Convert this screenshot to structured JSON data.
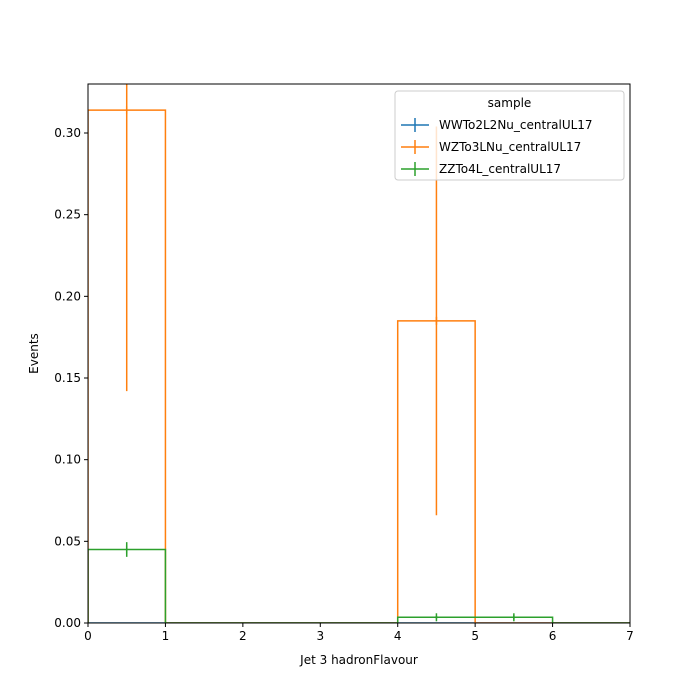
{
  "chart_data": {
    "type": "step-histogram",
    "xlabel": "Jet 3 hadronFlavour",
    "ylabel": "Events",
    "xlim": [
      0,
      7
    ],
    "ylim": [
      0,
      0.33
    ],
    "x_ticks": [
      "0",
      "1",
      "2",
      "3",
      "4",
      "5",
      "6",
      "7"
    ],
    "y_ticks": [
      "0.00",
      "0.05",
      "0.10",
      "0.15",
      "0.20",
      "0.25",
      "0.30"
    ],
    "legend": {
      "title": "sample",
      "placement": "upper-right"
    },
    "grid": false,
    "bin_edges": [
      0,
      1,
      2,
      3,
      4,
      5,
      6,
      7
    ],
    "series": [
      {
        "name": "WWTo2L2Nu_centralUL17",
        "color": "#1f77b4",
        "values": [
          0,
          0,
          0,
          0,
          0,
          0,
          0
        ],
        "errors": [
          0,
          0,
          0,
          0,
          0,
          0,
          0
        ]
      },
      {
        "name": "WZTo3LNu_centralUL17",
        "color": "#ff7f0e",
        "values": [
          0.314,
          0,
          0,
          0,
          0.185,
          0,
          0
        ],
        "errors": [
          0.172,
          0,
          0,
          0,
          0.119,
          0,
          0
        ]
      },
      {
        "name": "ZZTo4L_centralUL17",
        "color": "#2ca02c",
        "values": [
          0.045,
          0,
          0,
          0,
          0.0035,
          0.0035,
          0
        ],
        "errors": [
          0.0045,
          0,
          0,
          0,
          0.0008,
          0.0012,
          0
        ]
      }
    ]
  }
}
